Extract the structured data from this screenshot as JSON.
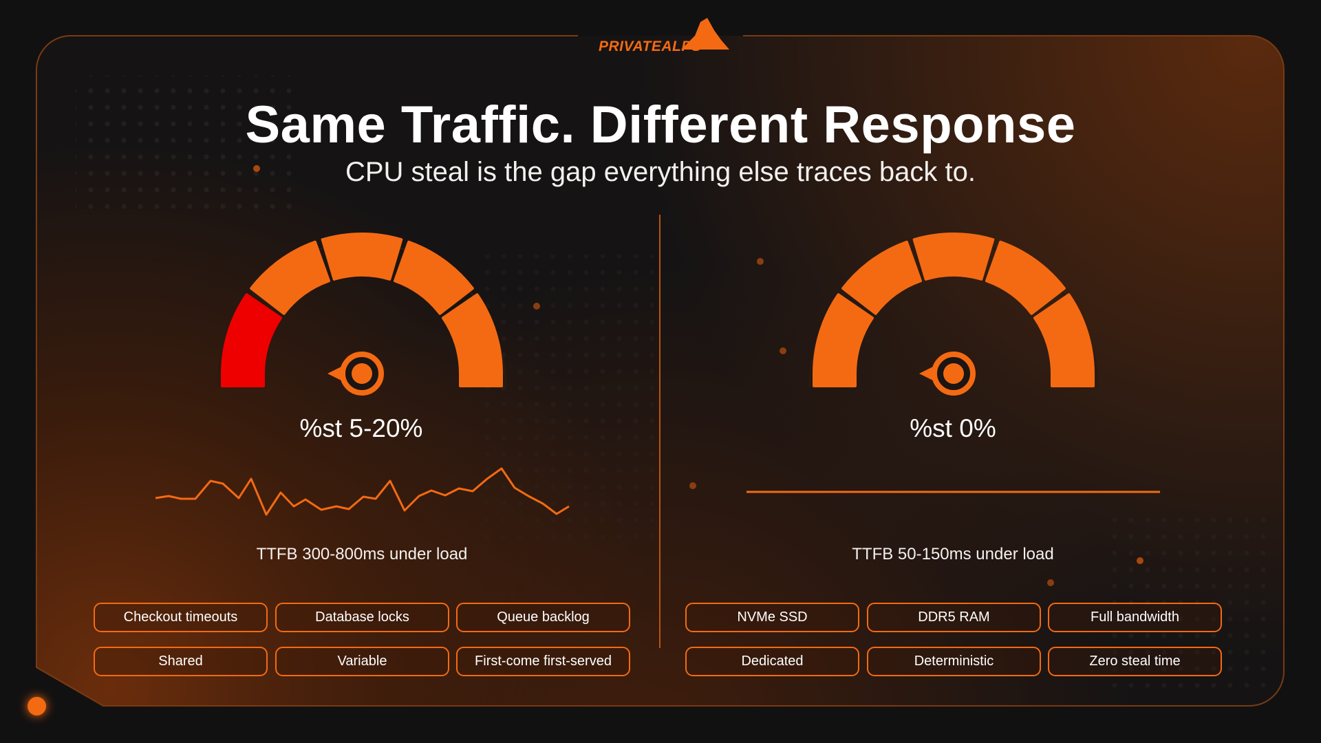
{
  "brand": {
    "name": "PRIVATEALPS",
    "accent": "#F46A12",
    "danger": "#EE0000"
  },
  "header": {
    "title": "Same Traffic. Different Response",
    "subtitle": "CPU steal is the gap everything else traces back to."
  },
  "left": {
    "gauge_label": "%st 5-20%",
    "gauge_segments": [
      "#EE0000",
      "#F46A12",
      "#F46A12",
      "#F46A12",
      "#F46A12"
    ],
    "ttfb": "TTFB 300-800ms under load",
    "line_style": "volatile",
    "tags": [
      "Checkout timeouts",
      "Database locks",
      "Queue backlog",
      "Shared",
      "Variable",
      "First-come first-served"
    ]
  },
  "right": {
    "gauge_label": "%st 0%",
    "gauge_segments": [
      "#F46A12",
      "#F46A12",
      "#F46A12",
      "#F46A12",
      "#F46A12"
    ],
    "ttfb": "TTFB 50-150ms under load",
    "line_style": "flat",
    "tags": [
      "NVMe SSD",
      "DDR5 RAM",
      "Full bandwidth",
      "Dedicated",
      "Deterministic",
      "Zero steal time"
    ]
  }
}
